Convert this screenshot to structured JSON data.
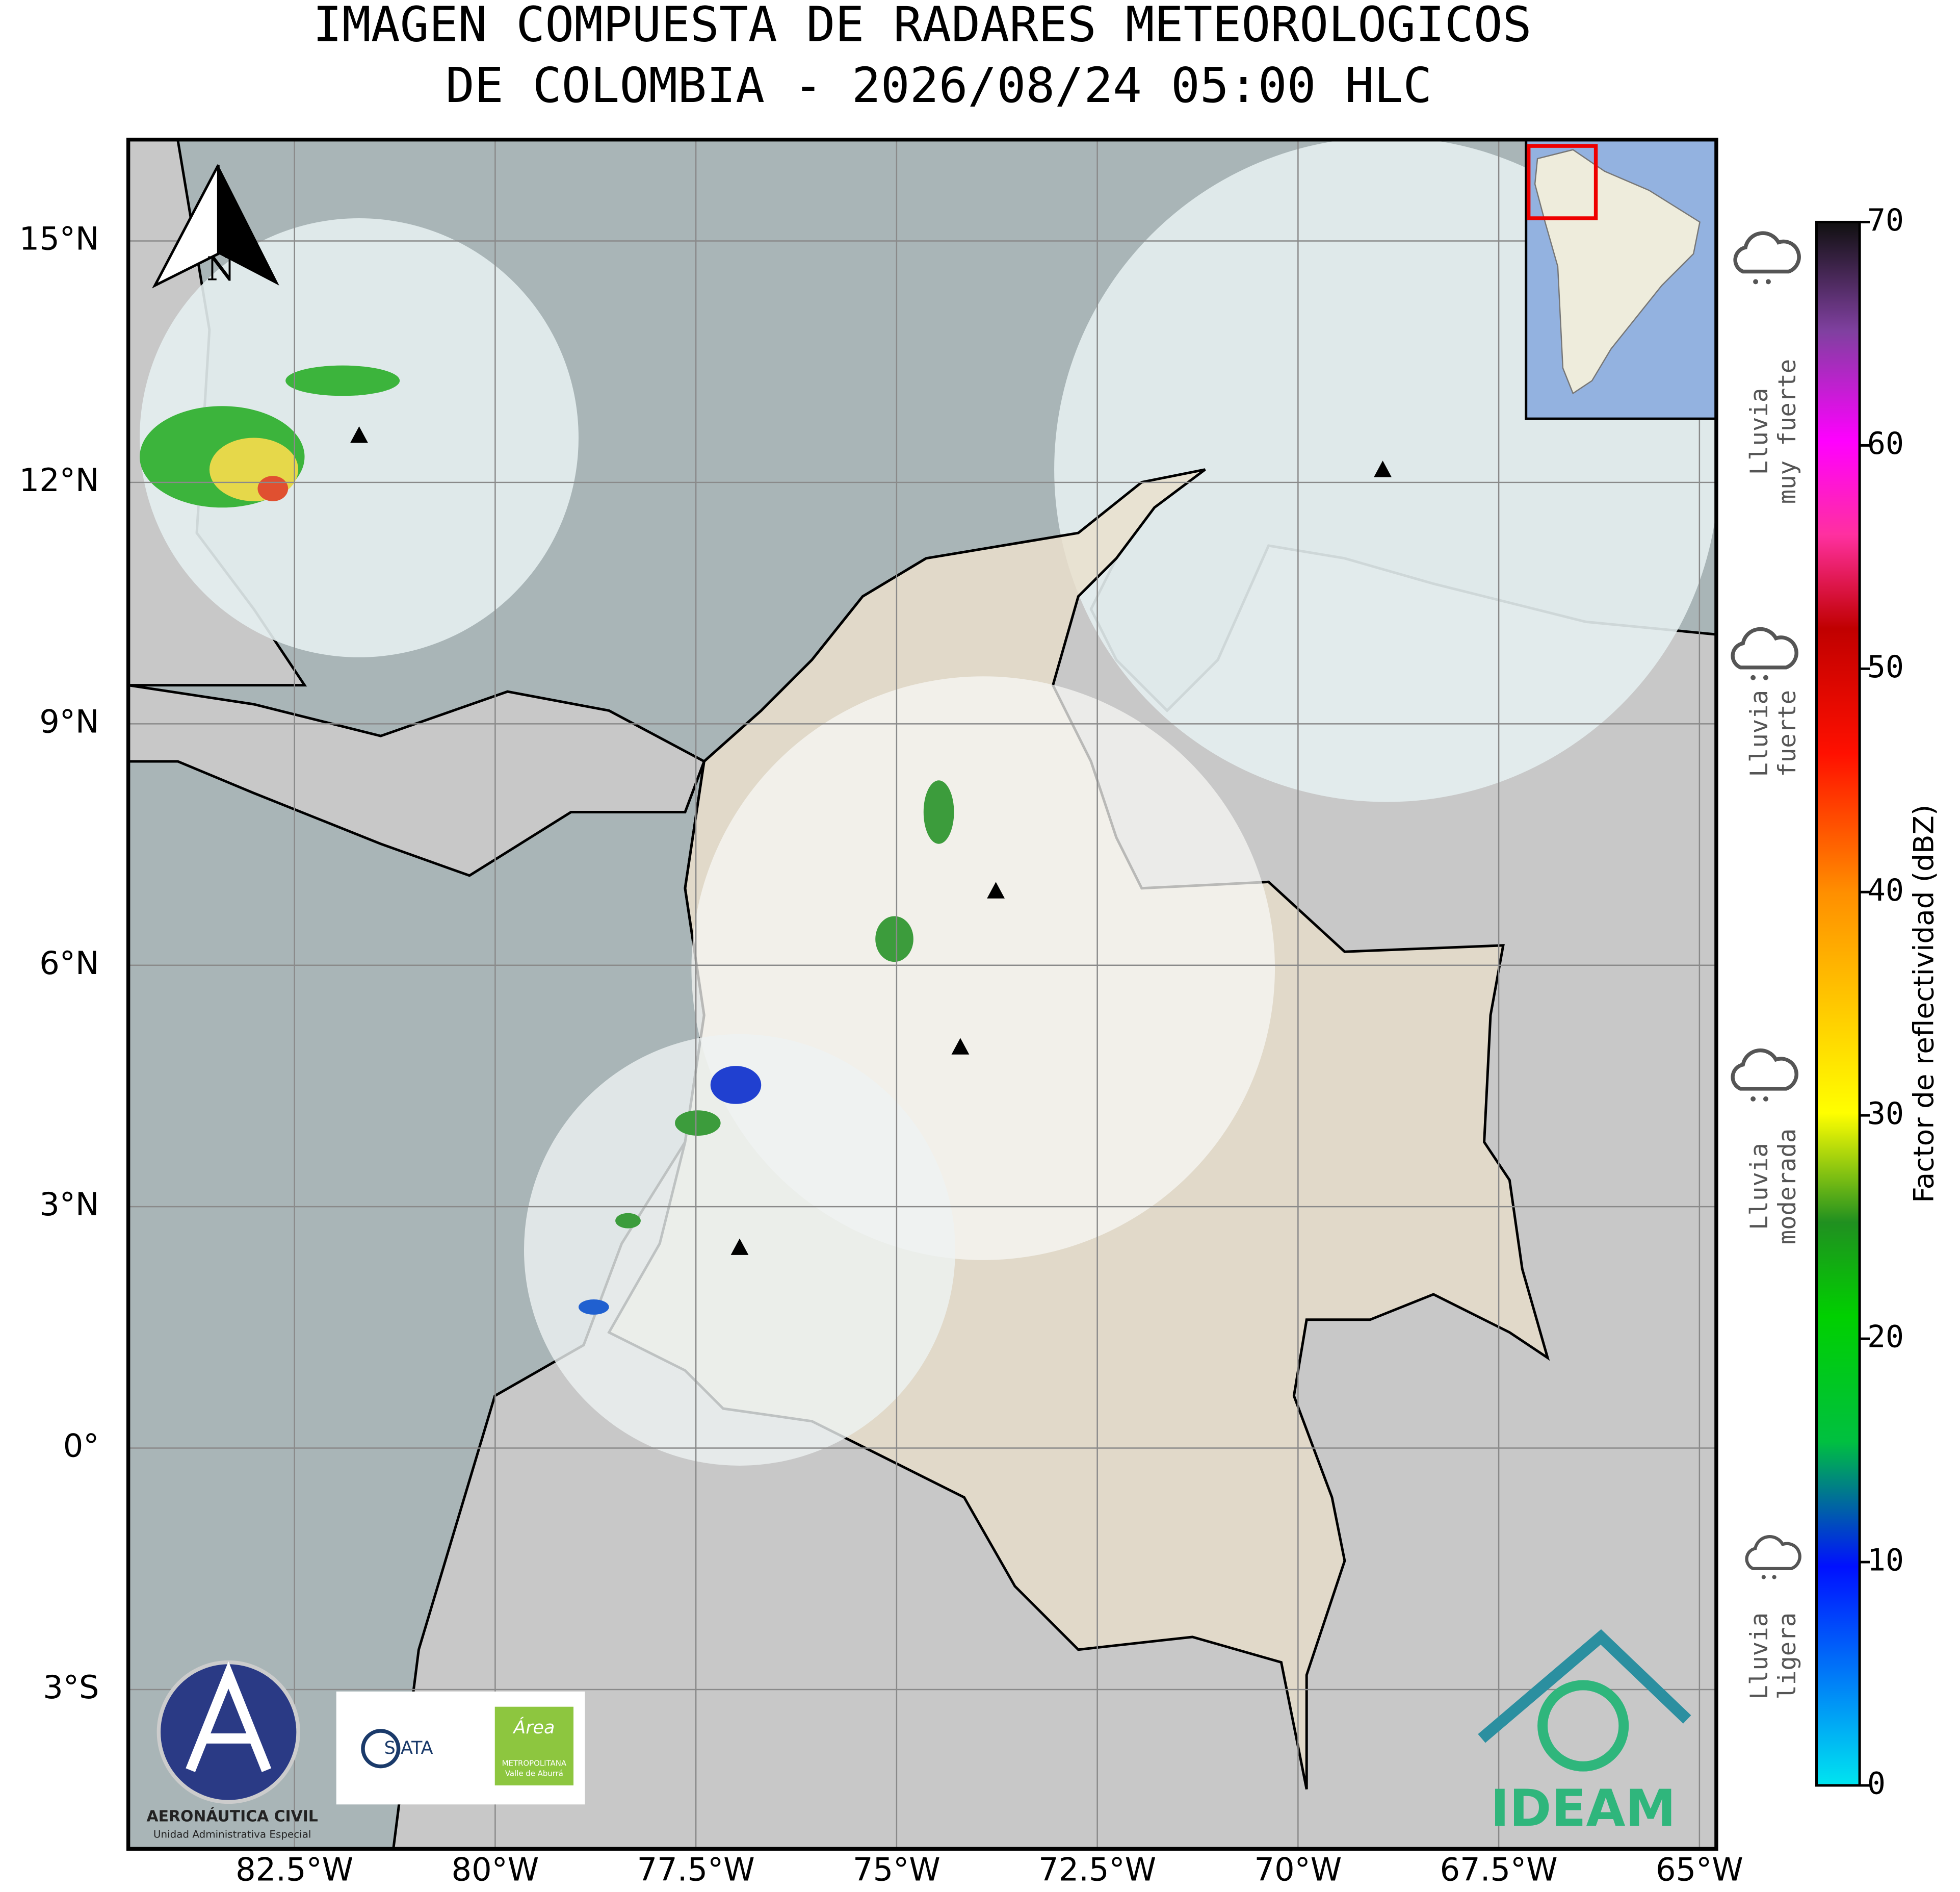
{
  "header": {
    "title_lines": [
      "IMAGEN COMPUESTA DE RADARES METEOROLOGICOS",
      "DE COLOMBIA - 2026/08/24 05:00 HLC"
    ]
  },
  "map": {
    "xlim": [
      -84.57,
      -64.79
    ],
    "ylim": [
      -4.98,
      16.26
    ],
    "xticks": [
      {
        "value": -82.5,
        "label": "82.5°W"
      },
      {
        "value": -80,
        "label": "80°W"
      },
      {
        "value": -77.5,
        "label": "77.5°W"
      },
      {
        "value": -75,
        "label": "75°W"
      },
      {
        "value": -72.5,
        "label": "72.5°W"
      },
      {
        "value": -70,
        "label": "70°W"
      },
      {
        "value": -67.5,
        "label": "67.5°W"
      },
      {
        "value": -65,
        "label": "65°W"
      }
    ],
    "yticks": [
      {
        "value": 15,
        "label": "15°N"
      },
      {
        "value": 12,
        "label": "12°N"
      },
      {
        "value": 9,
        "label": "9°N"
      },
      {
        "value": 6,
        "label": "6°N"
      },
      {
        "value": 3,
        "label": "3°N"
      },
      {
        "value": 0,
        "label": "0°"
      },
      {
        "value": -3,
        "label": "3°S"
      }
    ]
  },
  "colorbar": {
    "label": "Factor de reflectividad (dBZ)",
    "lim": [
      0,
      70
    ],
    "ticks": [
      0,
      10,
      20,
      30,
      40,
      50,
      60,
      70
    ]
  },
  "rain_categories": [
    {
      "lines": [
        "Lluvia",
        "muy fuerte"
      ]
    },
    {
      "lines": [
        "Lluvia",
        "fuerte"
      ]
    },
    {
      "lines": [
        "Lluvia",
        "moderada"
      ]
    },
    {
      "lines": [
        "Lluvia",
        "ligera"
      ]
    }
  ],
  "north_arrow": "N",
  "logos": {
    "aerocivil": [
      "AERONÁUTICA CIVIL",
      "Unidad Administrativa Especial"
    ],
    "siata": "SIATA",
    "area": [
      "Área",
      "METROPOLITANA",
      "Valle de Aburrá"
    ],
    "ideam": "IDEAM"
  }
}
